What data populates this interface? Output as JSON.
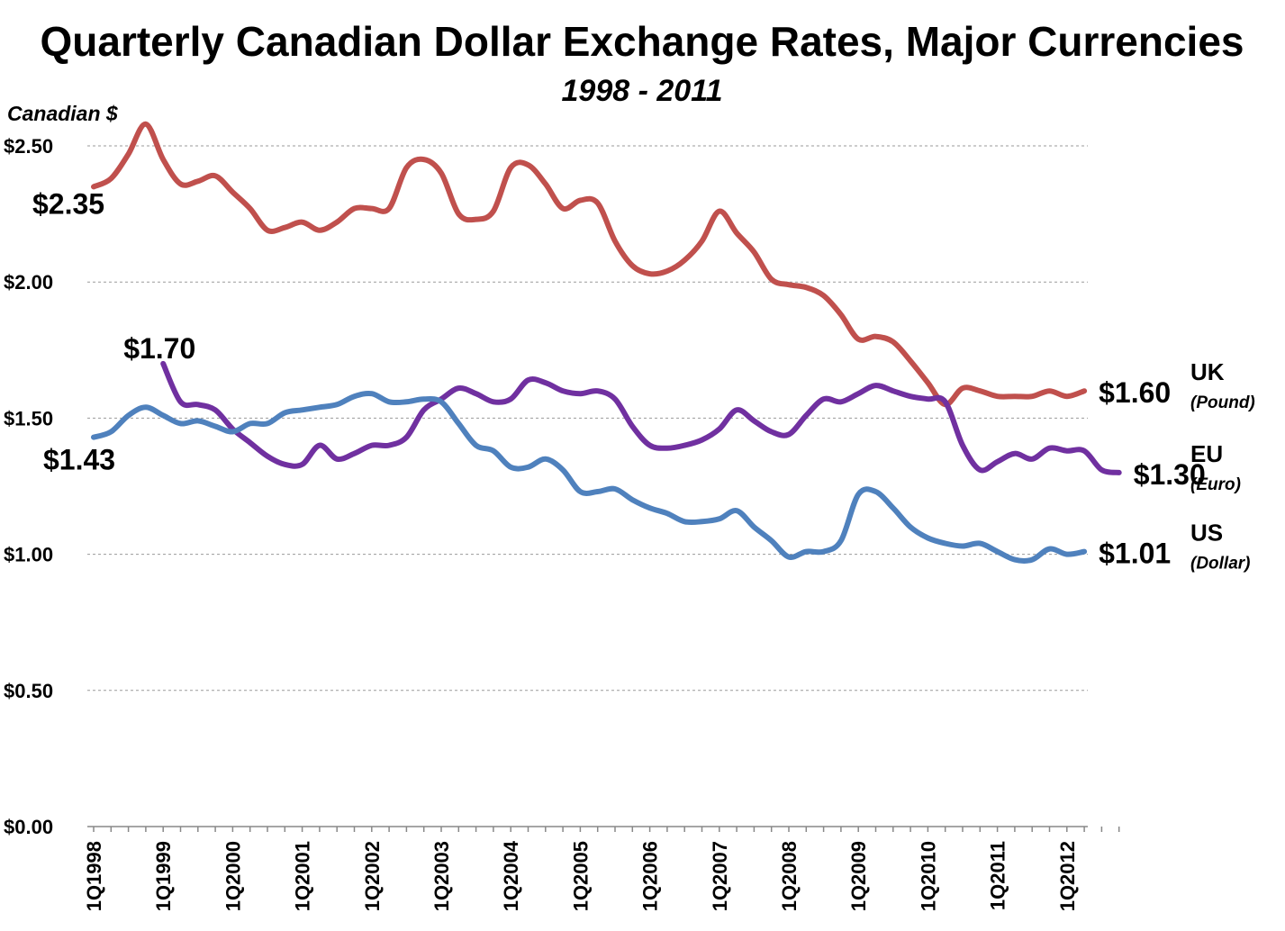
{
  "chart_data": {
    "type": "line",
    "title": "Quarterly Canadian Dollar Exchange Rates, Major Currencies",
    "subtitle": "1998 - 2011",
    "ylabel": "Canadian $",
    "ylim": [
      0,
      2.5
    ],
    "yticks": [
      0,
      0.5,
      1.0,
      1.5,
      2.0,
      2.5
    ],
    "ytick_labels": [
      "$0.00",
      "$0.50",
      "$1.00",
      "$1.50",
      "$2.00",
      "$2.50"
    ],
    "x_start": "1Q1998",
    "x_tick_labels": [
      "1Q1998",
      "1Q1999",
      "1Q2000",
      "1Q2001",
      "1Q2002",
      "1Q2003",
      "1Q2004",
      "1Q2005",
      "1Q2006",
      "1Q2007",
      "1Q2008",
      "1Q2009",
      "1Q2010",
      "1Q2011",
      "1Q2012"
    ],
    "grid": true,
    "series": [
      {
        "name": "UK",
        "legend_main": "UK",
        "legend_sub": "(Pound)",
        "color": "#c0504d",
        "start_index": 0,
        "values": [
          2.35,
          2.38,
          2.47,
          2.58,
          2.45,
          2.36,
          2.37,
          2.39,
          2.33,
          2.27,
          2.19,
          2.2,
          2.22,
          2.19,
          2.22,
          2.27,
          2.27,
          2.27,
          2.42,
          2.45,
          2.4,
          2.25,
          2.23,
          2.26,
          2.42,
          2.43,
          2.36,
          2.27,
          2.3,
          2.29,
          2.15,
          2.06,
          2.03,
          2.04,
          2.08,
          2.15,
          2.26,
          2.18,
          2.11,
          2.01,
          1.99,
          1.98,
          1.95,
          1.88,
          1.79,
          1.8,
          1.78,
          1.71,
          1.63,
          1.55,
          1.61,
          1.6,
          1.58,
          1.58,
          1.58,
          1.6,
          1.58,
          1.6
        ],
        "start_label": "$2.35",
        "end_label": "$1.60"
      },
      {
        "name": "EU",
        "legend_main": "EU",
        "legend_sub": "(Euro)",
        "color": "#7030a0",
        "start_index": 4,
        "values": [
          1.7,
          1.56,
          1.55,
          1.53,
          1.46,
          1.41,
          1.36,
          1.33,
          1.33,
          1.4,
          1.35,
          1.37,
          1.4,
          1.4,
          1.43,
          1.53,
          1.57,
          1.61,
          1.59,
          1.56,
          1.57,
          1.64,
          1.63,
          1.6,
          1.59,
          1.6,
          1.57,
          1.47,
          1.4,
          1.39,
          1.4,
          1.42,
          1.46,
          1.53,
          1.49,
          1.45,
          1.44,
          1.51,
          1.57,
          1.56,
          1.59,
          1.62,
          1.6,
          1.58,
          1.57,
          1.56,
          1.4,
          1.31,
          1.34,
          1.37,
          1.35,
          1.39,
          1.38,
          1.38,
          1.31,
          1.3
        ],
        "start_label": "$1.70",
        "end_label": "$1.30"
      },
      {
        "name": "US",
        "legend_main": "US",
        "legend_sub": "(Dollar)",
        "color": "#4f81bd",
        "start_index": 0,
        "values": [
          1.43,
          1.45,
          1.51,
          1.54,
          1.51,
          1.48,
          1.49,
          1.47,
          1.45,
          1.48,
          1.48,
          1.52,
          1.53,
          1.54,
          1.55,
          1.58,
          1.59,
          1.56,
          1.56,
          1.57,
          1.56,
          1.48,
          1.4,
          1.38,
          1.32,
          1.32,
          1.35,
          1.31,
          1.23,
          1.23,
          1.24,
          1.2,
          1.17,
          1.15,
          1.12,
          1.12,
          1.13,
          1.16,
          1.1,
          1.05,
          0.99,
          1.01,
          1.01,
          1.05,
          1.22,
          1.23,
          1.17,
          1.1,
          1.06,
          1.04,
          1.03,
          1.04,
          1.01,
          0.98,
          0.98,
          1.02,
          1.0,
          1.01
        ],
        "start_label": "$1.43",
        "end_label": "$1.01"
      }
    ]
  }
}
